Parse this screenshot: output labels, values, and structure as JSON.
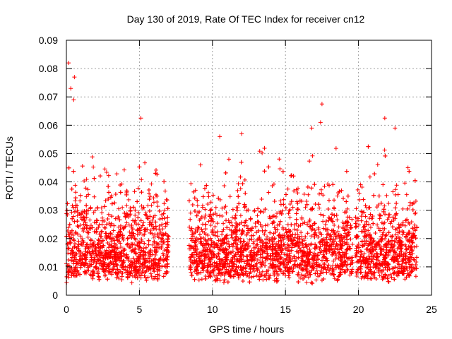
{
  "chart_data": {
    "type": "scatter",
    "title": "Day 130 of 2019, Rate Of TEC Index for receiver cn12",
    "xlabel": "GPS time / hours",
    "ylabel": "ROTI / TECUs",
    "xlim": [
      0,
      25
    ],
    "ylim": [
      0,
      0.09
    ],
    "x_ticks": [
      "0",
      "5",
      "10",
      "15",
      "20",
      "25"
    ],
    "y_ticks": [
      "0",
      "0.01",
      "0.02",
      "0.03",
      "0.04",
      "0.05",
      "0.06",
      "0.07",
      "0.08",
      "0.09"
    ],
    "grid": true,
    "legend": "none",
    "marker": "plus",
    "marker_color": "#ff0000",
    "data_gaps_hours": [
      [
        7.0,
        8.4
      ],
      [
        19.6,
        19.8
      ]
    ],
    "notable_points": [
      {
        "x": 0.15,
        "y": 0.082
      },
      {
        "x": 0.55,
        "y": 0.077
      },
      {
        "x": 0.3,
        "y": 0.073
      },
      {
        "x": 0.5,
        "y": 0.069
      },
      {
        "x": 5.1,
        "y": 0.0625
      },
      {
        "x": 17.5,
        "y": 0.0675
      },
      {
        "x": 21.8,
        "y": 0.0625
      },
      {
        "x": 16.8,
        "y": 0.059
      },
      {
        "x": 17.4,
        "y": 0.061
      },
      {
        "x": 22.5,
        "y": 0.059
      },
      {
        "x": 12.0,
        "y": 0.057
      },
      {
        "x": 10.5,
        "y": 0.056
      }
    ],
    "series_summary": {
      "typical_range": [
        0.005,
        0.035
      ],
      "median_approx": 0.015
    }
  }
}
